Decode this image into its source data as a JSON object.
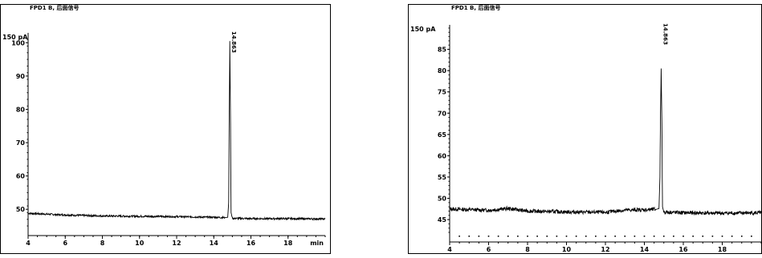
{
  "chart_data": [
    {
      "type": "line",
      "title": "FPD1 B, 后面信号",
      "unit_label": "150 pA",
      "xlabel": "",
      "ylabel": "",
      "xlim": [
        4,
        20
      ],
      "ylim": [
        45,
        102
      ],
      "x_ticks": [
        4,
        6,
        8,
        10,
        12,
        14,
        16,
        18
      ],
      "x_tick_labels": [
        "4",
        "6",
        "8",
        "10",
        "12",
        "14",
        "16",
        "18"
      ],
      "x_end_label": "min",
      "y_ticks": [
        50,
        60,
        70,
        80,
        90,
        100
      ],
      "y_tick_labels": [
        "50",
        "60",
        "70",
        "80",
        "90",
        "100"
      ],
      "peak_label": "14.863",
      "series": [
        {
          "x": [
            4.0,
            6.0,
            8.0,
            10.0,
            12.0,
            14.0,
            14.6,
            14.75,
            14.8,
            14.83,
            14.863,
            14.9,
            14.93,
            15.0,
            16.0,
            18.0,
            20.0
          ],
          "y": [
            48.8,
            48.3,
            48.0,
            47.9,
            47.8,
            47.6,
            47.5,
            47.6,
            52.0,
            75.0,
            100.5,
            76.0,
            49.0,
            47.3,
            47.2,
            47.2,
            47.1
          ]
        }
      ],
      "grid": false,
      "legend": "none"
    },
    {
      "type": "line",
      "title": "FPD1 B, 后面信号",
      "unit_label": "150 pA",
      "xlabel": "",
      "ylabel": "",
      "xlim": [
        4,
        20
      ],
      "ylim": [
        42,
        90
      ],
      "x_ticks": [
        4,
        6,
        8,
        10,
        12,
        14,
        16,
        18
      ],
      "x_tick_labels": [
        "4",
        "6",
        "8",
        "10",
        "12",
        "14",
        "16",
        "18"
      ],
      "y_ticks": [
        45,
        50,
        55,
        60,
        65,
        70,
        75,
        80,
        85
      ],
      "y_tick_labels": [
        "45",
        "50",
        "55",
        "60",
        "65",
        "70",
        "75",
        "80",
        "85"
      ],
      "peak_label": "14.863",
      "series": [
        {
          "x": [
            4.0,
            6.0,
            7.0,
            8.0,
            10.0,
            12.0,
            13.0,
            14.0,
            14.6,
            14.75,
            14.8,
            14.83,
            14.863,
            14.9,
            14.93,
            15.0,
            16.0,
            18.0,
            20.0
          ],
          "y": [
            47.5,
            47.2,
            47.6,
            47.0,
            46.8,
            46.7,
            47.2,
            47.3,
            47.4,
            47.6,
            55.0,
            70.0,
            80.5,
            68.0,
            48.0,
            46.8,
            46.6,
            46.5,
            46.6
          ]
        }
      ],
      "grid": false,
      "legend": "none"
    }
  ]
}
